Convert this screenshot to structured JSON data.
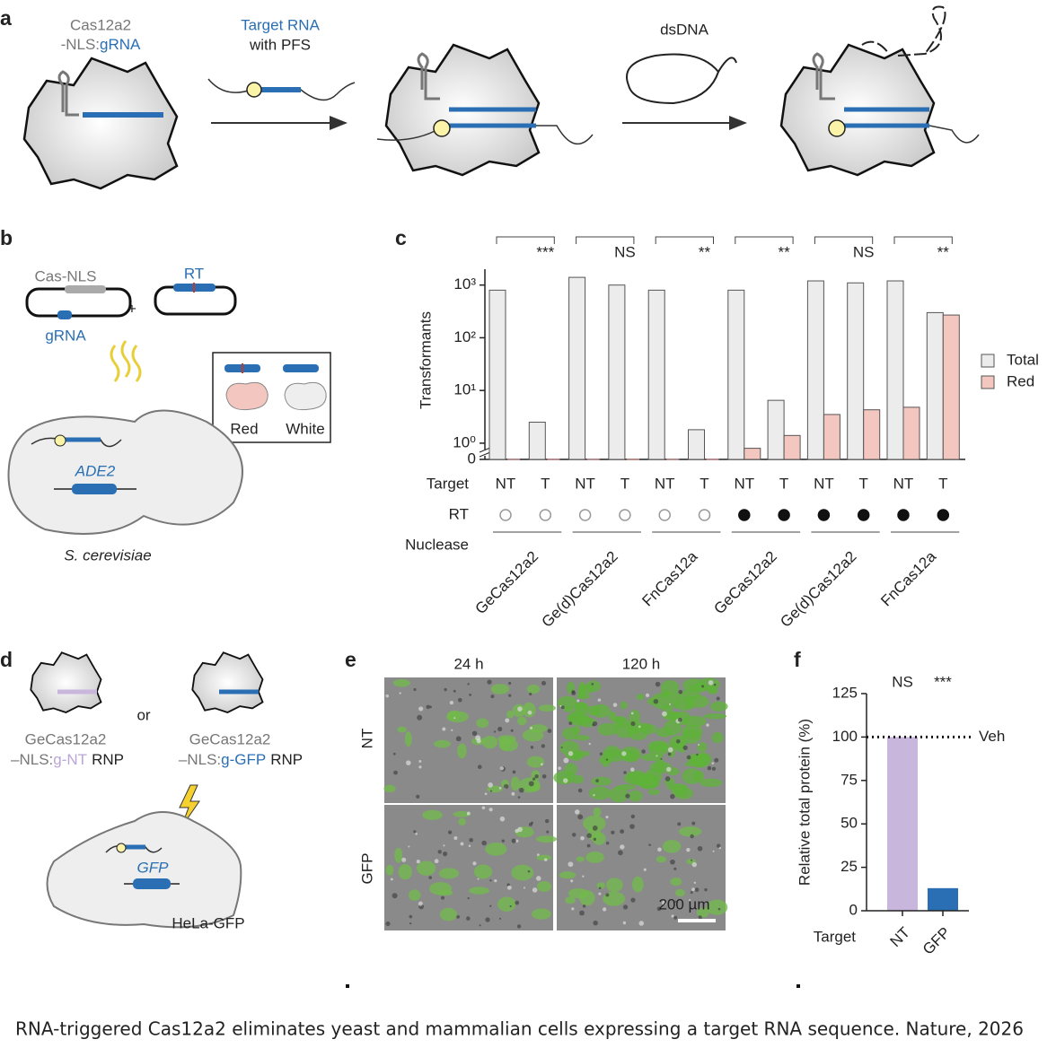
{
  "figure": {
    "panel_labels": [
      "a",
      "b",
      "c",
      "d",
      "e",
      "f"
    ],
    "a": {
      "cas_line1": "Cas12a2",
      "cas_line2_prefix": "-NLS:",
      "cas_line2_grna": "gRNA",
      "target_line1": "Target RNA",
      "target_line2": "with PFS",
      "dsdna": "dsDNA"
    },
    "b": {
      "cas_nls": "Cas-NLS",
      "grna": "gRNA",
      "rt": "RT",
      "plus": "+",
      "red": "Red",
      "white": "White",
      "ade2": "ADE2",
      "species": "S. cerevisiae"
    },
    "d": {
      "or": "or",
      "left": {
        "line1": "GeCas12a2",
        "prefix": "–NLS:",
        "guide": "g-NT",
        "suffix": "RNP"
      },
      "right": {
        "line1": "GeCas12a2",
        "prefix": "–NLS:",
        "guide": "g-GFP",
        "suffix": "RNP"
      },
      "gfp": "GFP",
      "cell": "HeLa-GFP"
    },
    "e": {
      "columns": [
        "24 h",
        "120 h"
      ],
      "rows": [
        "NT",
        "GFP"
      ],
      "scale_bar": "200 µm"
    },
    "caption": "RNA-triggered Cas12a2 eliminates yeast and mammalian cells expressing a target RNA sequence. Nature, 2026"
  },
  "chart_data": [
    {
      "type": "bar",
      "ylabel": "Transformants",
      "log_scale": true,
      "ylim": [
        0.7,
        2000
      ],
      "yticks": [
        0,
        {
          "value": 1,
          "label": "10⁰"
        },
        {
          "value": 10,
          "label": "10¹"
        },
        {
          "value": 100,
          "label": "10²"
        },
        {
          "value": 1000,
          "label": "10³"
        }
      ],
      "categories": [
        "NT",
        "T",
        "NT",
        "T",
        "NT",
        "T",
        "NT",
        "T",
        "NT",
        "T",
        "NT",
        "T"
      ],
      "series": [
        {
          "name": "Total",
          "color": "#ececec",
          "values": [
            800,
            2.5,
            1400,
            1000,
            800,
            1.8,
            800,
            6.5,
            1200,
            1100,
            1200,
            300
          ]
        },
        {
          "name": "Red",
          "color": "#f3c6bf",
          "values": [
            0,
            0,
            0,
            0,
            0,
            0,
            0.8,
            1.4,
            3.5,
            4.3,
            4.8,
            270
          ]
        }
      ],
      "row_labels": {
        "target": "Target",
        "rt": "RT",
        "nuclease": "Nuclease"
      },
      "rt": [
        false,
        false,
        false,
        false,
        false,
        false,
        true,
        true,
        true,
        true,
        true,
        true
      ],
      "groups": [
        "GeCas12a2",
        "Ge(d)Cas12a2",
        "FnCas12a",
        "GeCas12a2",
        "Ge(d)Cas12a2",
        "FnCas12a"
      ],
      "significance": [
        "***",
        "NS",
        "**",
        "**",
        "NS",
        "**"
      ],
      "legend": "right"
    },
    {
      "type": "bar",
      "ylabel": "Relative total protein (%)",
      "xlabel": "Target",
      "categories": [
        "NT",
        "GFP"
      ],
      "values": [
        100,
        13
      ],
      "colors": [
        "#c9b6dd",
        "#2a6fb4"
      ],
      "ylim": [
        0,
        125
      ],
      "yticks": [
        0,
        25,
        50,
        75,
        100,
        125
      ],
      "reference_line": {
        "value": 100,
        "label": "Veh"
      },
      "significance": [
        "NS",
        "***"
      ]
    }
  ]
}
